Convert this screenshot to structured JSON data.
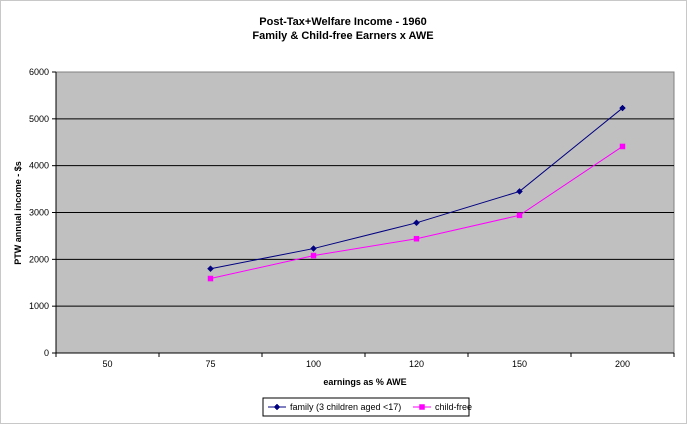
{
  "chart_data": {
    "type": "line",
    "title": "Post-Tax+Welfare Income - 1960",
    "subtitle": "Family & Child-free Earners x AWE",
    "xlabel": "earnings as % AWE",
    "ylabel": "PTW annual income - $s",
    "categories": [
      "50",
      "75",
      "100",
      "120",
      "150",
      "200"
    ],
    "ylim": [
      0,
      6000
    ],
    "yticks": [
      "0",
      "1000",
      "2000",
      "3000",
      "4000",
      "5000",
      "6000"
    ],
    "grid": true,
    "legend_position": "bottom",
    "series": [
      {
        "name": "family (3 children aged <17)",
        "color": "#000080",
        "marker": "diamond",
        "values": [
          null,
          1800,
          2230,
          2780,
          3450,
          5230
        ]
      },
      {
        "name": "child-free",
        "color": "#ff00ff",
        "marker": "square",
        "values": [
          null,
          1590,
          2080,
          2440,
          2940,
          4410
        ]
      }
    ],
    "plot_background": "#c0c0c0"
  }
}
